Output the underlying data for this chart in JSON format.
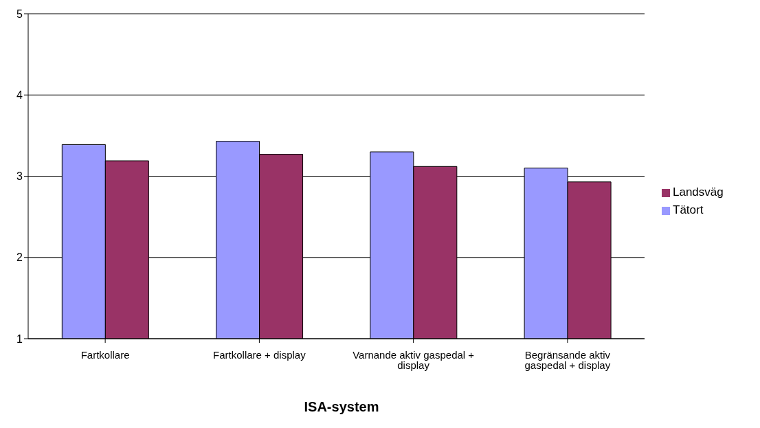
{
  "chart_data": {
    "type": "bar",
    "xlabel": "ISA-system",
    "categories": [
      "Fartkollare",
      "Fartkollare + display",
      "Varnande aktiv gaspedal + display",
      "Begränsande aktiv gaspedal + display"
    ],
    "series": [
      {
        "name": "Tätort",
        "color": "#9999ff",
        "values": [
          3.39,
          3.43,
          3.3,
          3.1
        ]
      },
      {
        "name": "Landsväg",
        "color": "#993366",
        "values": [
          3.19,
          3.27,
          3.12,
          2.93
        ]
      }
    ],
    "ylim": [
      1,
      5
    ],
    "yticks": [
      1,
      2,
      3,
      4,
      5
    ],
    "grid": "y",
    "legend": "right"
  }
}
